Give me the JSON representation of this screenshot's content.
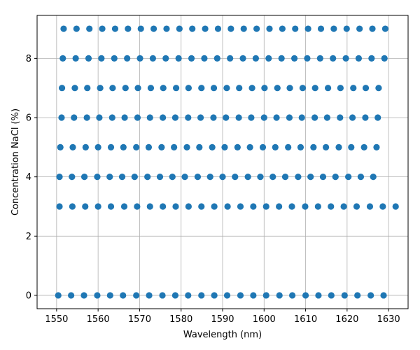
{
  "chart_data": {
    "type": "scatter",
    "title": "",
    "xlabel": "Wavelength (nm)",
    "ylabel": "Concentration NaCl (%)",
    "xlim": [
      1545.3,
      1634.7
    ],
    "ylim": [
      -0.45,
      9.45
    ],
    "xticks": [
      1550,
      1560,
      1570,
      1580,
      1590,
      1600,
      1610,
      1620,
      1630
    ],
    "yticks": [
      0,
      2,
      4,
      6,
      8
    ],
    "grid": true,
    "marker_color": "#1f77b4",
    "rows": [
      {
        "y": 0,
        "x": [
          1550.4,
          1553.5,
          1556.6,
          1559.8,
          1562.9,
          1566.0,
          1569.2,
          1572.3,
          1575.5,
          1578.6,
          1581.7,
          1584.9,
          1588.0,
          1591.1,
          1594.3,
          1597.4,
          1600.5,
          1603.7,
          1606.8,
          1610.0,
          1613.1,
          1616.2,
          1619.4,
          1622.5,
          1625.7,
          1628.8
        ]
      },
      {
        "y": 3,
        "x": [
          1550.7,
          1553.8,
          1556.9,
          1560.0,
          1563.1,
          1566.3,
          1569.4,
          1572.5,
          1575.6,
          1578.7,
          1581.8,
          1584.9,
          1588.0,
          1591.2,
          1594.3,
          1597.4,
          1600.5,
          1603.6,
          1606.7,
          1609.9,
          1613.0,
          1616.1,
          1619.2,
          1622.3,
          1625.5,
          1628.6,
          1631.7
        ]
      },
      {
        "y": 4,
        "x": [
          1550.7,
          1553.7,
          1556.7,
          1559.8,
          1562.8,
          1565.8,
          1568.8,
          1571.9,
          1574.9,
          1577.9,
          1580.9,
          1584.0,
          1587.0,
          1590.0,
          1593.0,
          1596.1,
          1599.1,
          1602.1,
          1605.1,
          1608.2,
          1611.2,
          1614.2,
          1617.2,
          1620.3,
          1623.3,
          1626.3
        ]
      },
      {
        "y": 5,
        "x": [
          1550.9,
          1553.9,
          1557.0,
          1560.0,
          1563.1,
          1566.1,
          1569.2,
          1572.2,
          1575.3,
          1578.3,
          1581.4,
          1584.4,
          1587.5,
          1590.5,
          1593.6,
          1596.6,
          1599.7,
          1602.7,
          1605.8,
          1608.8,
          1611.9,
          1614.9,
          1618.0,
          1621.0,
          1624.1,
          1627.1
        ]
      },
      {
        "y": 6,
        "x": [
          1551.2,
          1554.2,
          1557.3,
          1560.3,
          1563.4,
          1566.4,
          1569.5,
          1572.5,
          1575.6,
          1578.6,
          1581.7,
          1584.7,
          1587.8,
          1590.8,
          1593.9,
          1596.9,
          1600.0,
          1603.0,
          1606.1,
          1609.1,
          1612.2,
          1615.2,
          1618.3,
          1621.3,
          1624.4,
          1627.4
        ]
      },
      {
        "y": 7,
        "x": [
          1551.3,
          1554.4,
          1557.4,
          1560.5,
          1563.5,
          1566.6,
          1569.6,
          1572.7,
          1575.7,
          1578.8,
          1581.8,
          1584.9,
          1587.9,
          1591.0,
          1594.0,
          1597.1,
          1600.1,
          1603.2,
          1606.2,
          1609.3,
          1612.3,
          1615.4,
          1618.4,
          1621.5,
          1624.5,
          1627.6
        ]
      },
      {
        "y": 8,
        "x": [
          1551.5,
          1554.6,
          1557.7,
          1560.8,
          1563.9,
          1567.0,
          1570.1,
          1573.2,
          1576.3,
          1579.4,
          1582.5,
          1585.6,
          1588.7,
          1591.8,
          1594.9,
          1598.0,
          1601.1,
          1604.2,
          1607.3,
          1610.4,
          1613.5,
          1616.6,
          1619.7,
          1622.8,
          1625.9,
          1629.0
        ]
      },
      {
        "y": 9,
        "x": [
          1551.7,
          1554.8,
          1557.9,
          1561.0,
          1564.1,
          1567.2,
          1570.3,
          1573.4,
          1576.5,
          1579.6,
          1582.7,
          1585.8,
          1588.9,
          1592.0,
          1595.1,
          1598.2,
          1601.3,
          1604.4,
          1607.5,
          1610.6,
          1613.7,
          1616.8,
          1619.9,
          1623.0,
          1626.1,
          1629.2
        ]
      }
    ]
  }
}
